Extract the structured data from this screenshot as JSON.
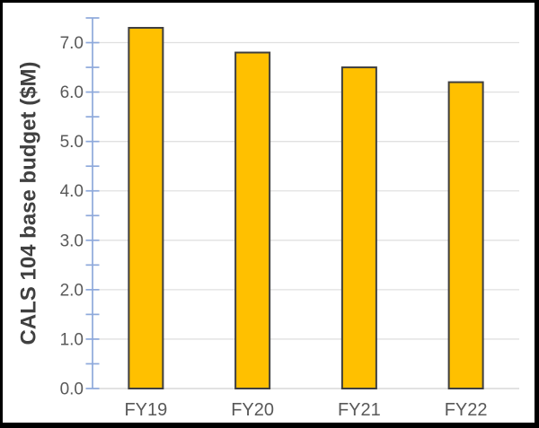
{
  "chart_data": {
    "type": "bar",
    "title": "",
    "categories": [
      "FY19",
      "FY20",
      "FY21",
      "FY22"
    ],
    "values": [
      7.3,
      6.8,
      6.5,
      6.2
    ],
    "xlabel": "",
    "ylabel": "CALS 104 base budget ($M)",
    "ylim": [
      0,
      7.5
    ],
    "ytick_interval": 1.0,
    "ytick_minor_interval": 0.5,
    "ytick_labels": [
      "0.0",
      "1.0",
      "2.0",
      "3.0",
      "4.0",
      "5.0",
      "6.0",
      "7.0"
    ],
    "grid": "horizontal-major",
    "legend": "none",
    "colors": {
      "bar_fill": "#FFC000",
      "bar_border": "#3F3F3F",
      "axis_line": "#8EA9DB",
      "tick_mark": "#8EA9DB",
      "gridline": "#E0E0E0",
      "x_axis_line": "#D9D9D9",
      "tick_label": "#595959",
      "category_label": "#595959",
      "axis_title": "#404040",
      "frame": "#000000",
      "background": "#FFFFFF"
    }
  }
}
